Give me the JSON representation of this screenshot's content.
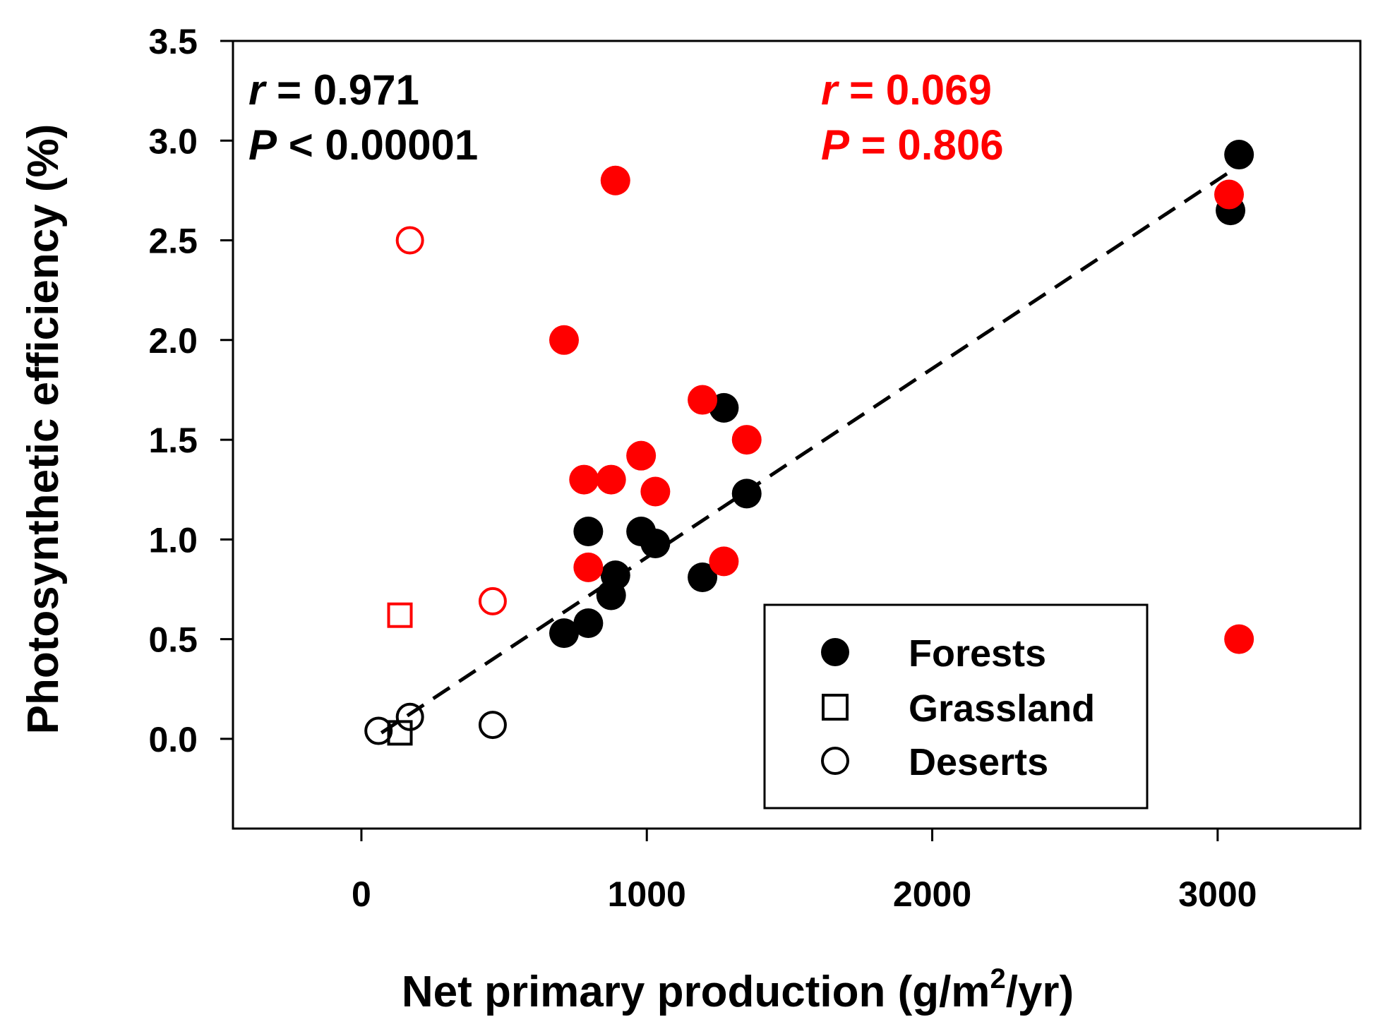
{
  "chart_data": {
    "type": "scatter",
    "xlabel": "Net primary production (g/m",
    "xlabel_sup": "2",
    "xlabel_end": "/yr)",
    "ylabel": "Photosynthetic efficiency (%)",
    "xlim": [
      -450,
      3500
    ],
    "ylim": [
      -0.45,
      3.5
    ],
    "x_ticks": [
      0,
      1000,
      2000,
      3000
    ],
    "x_tick_labels": [
      "0",
      "1000",
      "2000",
      "3000"
    ],
    "y_ticks": [
      0.0,
      0.5,
      1.0,
      1.5,
      2.0,
      2.5,
      3.0,
      3.5
    ],
    "y_tick_labels": [
      "0.0",
      "0.5",
      "1.0",
      "1.5",
      "2.0",
      "2.5",
      "3.0",
      "3.5"
    ],
    "grid": false,
    "legend_position": "bottom-right",
    "colors": {
      "black": "#000000",
      "red": "#ff0000"
    },
    "annotations": [
      {
        "id": "black",
        "r_symbol": "r",
        "r_rest": " = 0.971",
        "p_symbol": "P",
        "p_rest": " < 0.00001",
        "color": "#000000"
      },
      {
        "id": "red",
        "r_symbol": "r",
        "r_rest": " = 0.069",
        "p_symbol": "P",
        "p_rest": " = 0.806",
        "color": "#ff0000"
      }
    ],
    "legend": [
      {
        "label": "Forests",
        "marker": "filled-circle"
      },
      {
        "label": "Grassland",
        "marker": "open-square"
      },
      {
        "label": "Deserts",
        "marker": "open-circle"
      }
    ],
    "fit_line": {
      "style": "dashed",
      "color": "#000000",
      "points": [
        [
          70,
          0.03
        ],
        [
          3060,
          2.86
        ]
      ]
    },
    "series": [
      {
        "name": "Forests",
        "color": "black",
        "marker": "filled-circle",
        "points": [
          [
            3075,
            2.93
          ],
          [
            3045,
            2.65
          ],
          [
            1270,
            1.66
          ],
          [
            1350,
            1.23
          ],
          [
            980,
            1.04
          ],
          [
            1030,
            0.98
          ],
          [
            795,
            1.04
          ],
          [
            890,
            0.82
          ],
          [
            875,
            0.72
          ],
          [
            1195,
            0.81
          ],
          [
            795,
            0.58
          ],
          [
            710,
            0.53
          ]
        ]
      },
      {
        "name": "Forests",
        "color": "red",
        "marker": "filled-circle",
        "points": [
          [
            890,
            2.8
          ],
          [
            3040,
            2.73
          ],
          [
            710,
            2.0
          ],
          [
            1195,
            1.7
          ],
          [
            1350,
            1.5
          ],
          [
            980,
            1.42
          ],
          [
            780,
            1.3
          ],
          [
            875,
            1.3
          ],
          [
            1030,
            1.24
          ],
          [
            1270,
            0.89
          ],
          [
            795,
            0.86
          ],
          [
            3075,
            0.5
          ]
        ]
      },
      {
        "name": "Grassland",
        "color": "black",
        "marker": "open-square",
        "points": [
          [
            135,
            0.03
          ]
        ]
      },
      {
        "name": "Grassland",
        "color": "red",
        "marker": "open-square",
        "points": [
          [
            135,
            0.62
          ]
        ]
      },
      {
        "name": "Deserts",
        "color": "black",
        "marker": "open-circle",
        "points": [
          [
            60,
            0.04
          ],
          [
            170,
            0.11
          ],
          [
            460,
            0.07
          ]
        ]
      },
      {
        "name": "Deserts",
        "color": "red",
        "marker": "open-circle",
        "points": [
          [
            170,
            2.5
          ],
          [
            460,
            0.69
          ]
        ]
      }
    ]
  }
}
